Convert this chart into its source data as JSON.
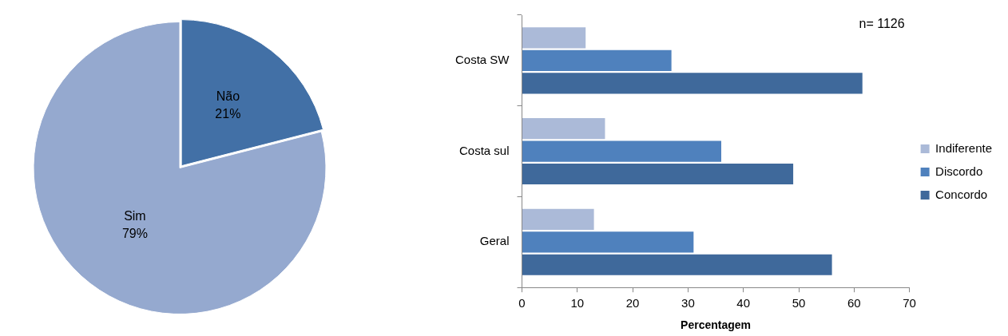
{
  "chart_data": [
    {
      "type": "pie",
      "categories": [
        "Não",
        "Sim"
      ],
      "values": [
        21,
        79
      ],
      "colors": [
        "#4270a6",
        "#95a9cf"
      ],
      "value_labels": [
        "21%",
        "79%"
      ],
      "legend": false
    },
    {
      "type": "bar",
      "orientation": "horizontal",
      "categories": [
        "Costa SW",
        "Costa sul",
        "Geral"
      ],
      "series": [
        {
          "name": "Indiferente",
          "color": "#abbad8",
          "values": [
            11.5,
            15,
            13
          ]
        },
        {
          "name": "Discordo",
          "color": "#4f81bd",
          "values": [
            27,
            36,
            31
          ]
        },
        {
          "name": "Concordo",
          "color": "#3f699b",
          "values": [
            61.5,
            49,
            56
          ]
        }
      ],
      "xlim": [
        0,
        70
      ],
      "xticks": [
        0,
        10,
        20,
        30,
        40,
        50,
        60,
        70
      ],
      "xlabel": "Percentagem",
      "grid": false,
      "legend": "right",
      "annotations": [
        "n= 1126"
      ]
    }
  ]
}
